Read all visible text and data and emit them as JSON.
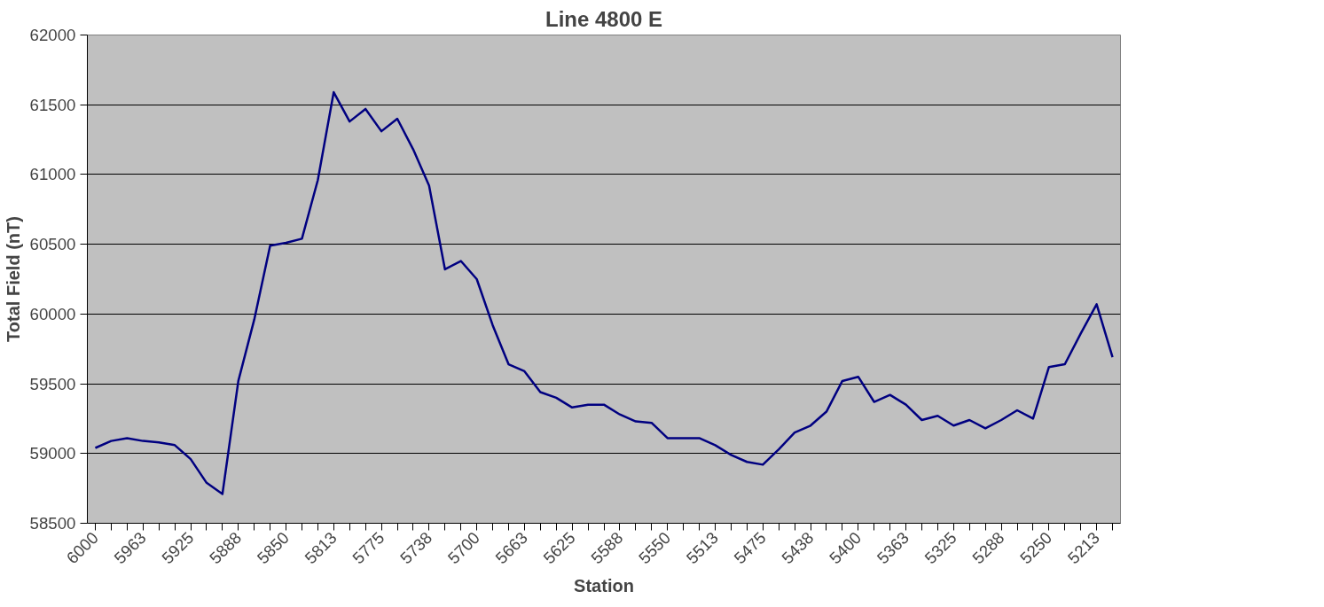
{
  "chart_data": {
    "type": "line",
    "title": "Line 4800 E",
    "xlabel": "Station",
    "ylabel": "Total Field (nT)",
    "categories": [
      "6000",
      null,
      null,
      "5963",
      null,
      null,
      "5925",
      null,
      null,
      "5888",
      null,
      null,
      "5850",
      null,
      null,
      "5813",
      null,
      null,
      "5775",
      null,
      null,
      "5738",
      null,
      null,
      "5700",
      null,
      null,
      "5663",
      null,
      null,
      "5625",
      null,
      null,
      "5588",
      null,
      null,
      "5550",
      null,
      null,
      "5513",
      null,
      null,
      "5475",
      null,
      null,
      "5438",
      null,
      null,
      "5400",
      null,
      null,
      "5363",
      null,
      null,
      "5325",
      null,
      null,
      "5288",
      null,
      null,
      "5250",
      null,
      null,
      "5213",
      null
    ],
    "series": [
      {
        "color": "#000080",
        "values": [
          59040,
          59090,
          59110,
          59090,
          59080,
          59060,
          58960,
          58790,
          58710,
          59520,
          59960,
          60490,
          60510,
          60540,
          60960,
          61590,
          61380,
          61470,
          61310,
          61400,
          61180,
          60920,
          60320,
          60380,
          60250,
          59920,
          59640,
          59590,
          59440,
          59400,
          59330,
          59350,
          59350,
          59280,
          59230,
          59220,
          59110,
          59110,
          59110,
          59060,
          58990,
          58940,
          58920,
          59030,
          59150,
          59200,
          59300,
          59520,
          59550,
          59370,
          59420,
          59350,
          59240,
          59270,
          59200,
          59240,
          59180,
          59240,
          59310,
          59250,
          59620,
          59640,
          59860,
          60070,
          59690
        ]
      }
    ],
    "ylim": [
      58500,
      62000
    ],
    "yticks": [
      58500,
      59000,
      59500,
      60000,
      60500,
      61000,
      61500,
      62000
    ],
    "grid": "y"
  }
}
